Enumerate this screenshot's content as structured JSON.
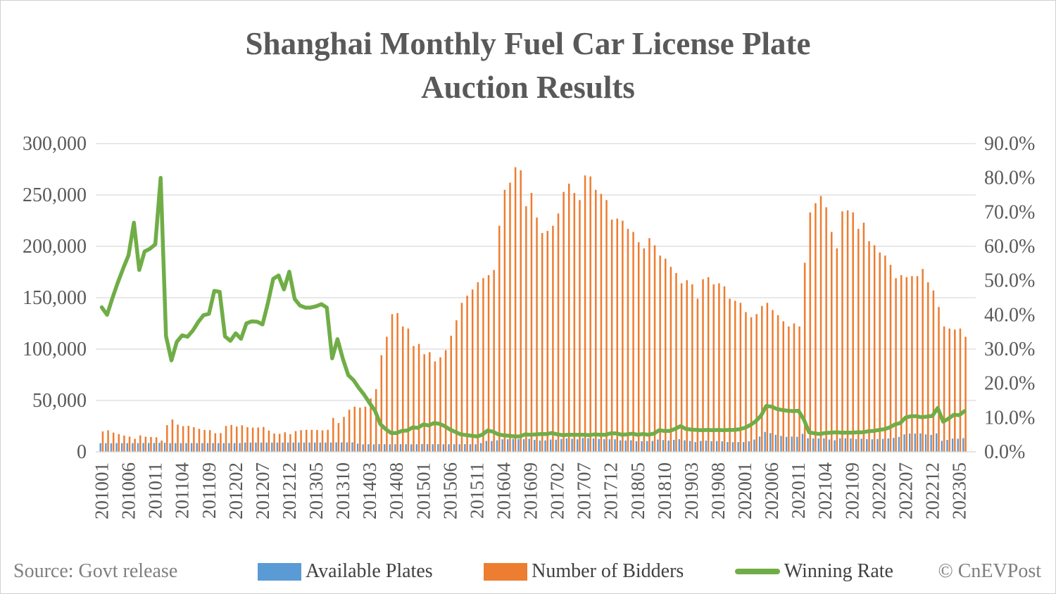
{
  "title": {
    "line1": "Shanghai Monthly Fuel Car License Plate",
    "line2": "Auction Results"
  },
  "footer": {
    "source": "Source: Govt release",
    "credit": "© CnEVPost"
  },
  "chart_data": {
    "type": "combo-bar-line",
    "x_label_rotation": -90,
    "x_tick_every": 5,
    "x_tick_labels": [
      "201001",
      "201006",
      "201011",
      "201104",
      "201109",
      "201202",
      "201207",
      "201212",
      "201305",
      "201310",
      "201403",
      "201408",
      "201501",
      "201506",
      "201511",
      "201604",
      "201609",
      "201702",
      "201707",
      "201712",
      "201805",
      "201810",
      "201903",
      "201908",
      "202001",
      "202006",
      "202011",
      "202104",
      "202109",
      "202202",
      "202207",
      "202212",
      "202305"
    ],
    "months": [
      "201001",
      "201002",
      "201003",
      "201004",
      "201005",
      "201006",
      "201007",
      "201008",
      "201009",
      "201010",
      "201011",
      "201012",
      "201101",
      "201102",
      "201103",
      "201104",
      "201105",
      "201106",
      "201107",
      "201108",
      "201109",
      "201110",
      "201111",
      "201112",
      "201201",
      "201202",
      "201203",
      "201204",
      "201205",
      "201206",
      "201207",
      "201208",
      "201209",
      "201210",
      "201211",
      "201212",
      "201301",
      "201302",
      "201303",
      "201304",
      "201305",
      "201306",
      "201307",
      "201308",
      "201309",
      "201310",
      "201311",
      "201312",
      "201401",
      "201402",
      "201403",
      "201404",
      "201405",
      "201406",
      "201407",
      "201408",
      "201409",
      "201410",
      "201411",
      "201412",
      "201501",
      "201502",
      "201503",
      "201504",
      "201505",
      "201506",
      "201507",
      "201508",
      "201509",
      "201510",
      "201511",
      "201512",
      "201601",
      "201602",
      "201603",
      "201604",
      "201605",
      "201606",
      "201607",
      "201608",
      "201609",
      "201610",
      "201611",
      "201612",
      "201701",
      "201702",
      "201703",
      "201704",
      "201705",
      "201706",
      "201707",
      "201708",
      "201709",
      "201710",
      "201711",
      "201712",
      "201801",
      "201802",
      "201803",
      "201804",
      "201805",
      "201806",
      "201807",
      "201808",
      "201809",
      "201810",
      "201811",
      "201812",
      "201901",
      "201902",
      "201903",
      "201904",
      "201905",
      "201906",
      "201907",
      "201908",
      "201909",
      "201910",
      "201911",
      "201912",
      "202001",
      "202002",
      "202003",
      "202004",
      "202005",
      "202006",
      "202007",
      "202008",
      "202009",
      "202010",
      "202011",
      "202012",
      "202101",
      "202102",
      "202103",
      "202104",
      "202105",
      "202106",
      "202107",
      "202108",
      "202109",
      "202110",
      "202111",
      "202112",
      "202201",
      "202202",
      "202203",
      "202204",
      "202205",
      "202206",
      "202207",
      "202208",
      "202209",
      "202210",
      "202211",
      "202212",
      "202301",
      "202302",
      "202303",
      "202304",
      "202305",
      "202306"
    ],
    "series": [
      {
        "name": "Available Plates",
        "type": "bar",
        "axis": "left",
        "color": "#5B9BD5",
        "values": [
          8400,
          8400,
          8400,
          8500,
          8500,
          8500,
          8500,
          8500,
          8600,
          8600,
          8600,
          8800,
          8800,
          8400,
          8500,
          8500,
          8500,
          8500,
          8500,
          8500,
          8500,
          8500,
          8500,
          8500,
          8500,
          8500,
          8500,
          9000,
          9000,
          9000,
          9000,
          9000,
          9000,
          9000,
          9000,
          9000,
          9000,
          9000,
          9000,
          9000,
          9000,
          9000,
          9000,
          9000,
          9200,
          9200,
          9200,
          9200,
          8000,
          7300,
          7400,
          7300,
          7600,
          7400,
          7400,
          7400,
          7500,
          7400,
          7300,
          7400,
          7600,
          7500,
          7400,
          7500,
          7400,
          7400,
          7400,
          7400,
          7500,
          7400,
          7400,
          8500,
          10600,
          10500,
          11200,
          12200,
          12200,
          12600,
          12400,
          12300,
          12700,
          11700,
          11000,
          11100,
          12000,
          11800,
          12500,
          13000,
          12700,
          12200,
          13500,
          13200,
          13000,
          12500,
          12300,
          12200,
          12200,
          11200,
          11000,
          11300,
          10300,
          10300,
          10500,
          10600,
          12000,
          11500,
          11000,
          11600,
          12300,
          11200,
          10600,
          9500,
          10600,
          10900,
          10300,
          10500,
          10200,
          9500,
          9400,
          9500,
          9500,
          10200,
          11970,
          14900,
          19400,
          18200,
          16600,
          15500,
          14600,
          14900,
          14600,
          17500,
          13200,
          13000,
          13000,
          13100,
          12000,
          11200,
          13200,
          13200,
          13000,
          12400,
          12800,
          12300,
          12200,
          12500,
          12600,
          13000,
          13600,
          14500,
          17000,
          17800,
          17800,
          18000,
          17000,
          16500,
          18000,
          10700,
          11600,
          12900,
          12800,
          13300
        ]
      },
      {
        "name": "Number of Bidders",
        "type": "bar",
        "axis": "left",
        "color": "#ED7D31",
        "values": [
          19900,
          21000,
          18700,
          17200,
          15900,
          14800,
          12700,
          16000,
          14700,
          14500,
          14200,
          11000,
          26000,
          31500,
          26500,
          25000,
          25300,
          24000,
          22400,
          21300,
          21100,
          18100,
          18200,
          25200,
          26200,
          24600,
          25800,
          24000,
          23600,
          23700,
          24200,
          20700,
          17800,
          17500,
          19000,
          17100,
          20200,
          21100,
          21400,
          21400,
          21200,
          20900,
          21400,
          33000,
          28000,
          34000,
          41000,
          44000,
          43000,
          44000,
          52000,
          61000,
          94000,
          112000,
          134000,
          135000,
          122000,
          120000,
          103000,
          105000,
          95000,
          97000,
          88000,
          92000,
          99000,
          113000,
          128000,
          145000,
          152000,
          158000,
          165000,
          169000,
          172000,
          177000,
          220000,
          255000,
          262000,
          277000,
          274000,
          239000,
          252000,
          228000,
          213000,
          215000,
          220000,
          232000,
          253000,
          261000,
          252000,
          245000,
          269000,
          268000,
          255000,
          251000,
          245000,
          226000,
          227000,
          225000,
          217000,
          214000,
          204000,
          198000,
          208000,
          201000,
          191000,
          188000,
          180000,
          174000,
          164000,
          167000,
          163000,
          149000,
          168000,
          170000,
          163000,
          164000,
          161000,
          149000,
          147000,
          145000,
          136000,
          131000,
          134000,
          142000,
          145000,
          138000,
          133000,
          127000,
          122000,
          125000,
          122000,
          184000,
          233000,
          242000,
          249000,
          238000,
          214000,
          198000,
          234000,
          235000,
          233000,
          217000,
          223000,
          205000,
          201000,
          194000,
          191000,
          182000,
          169000,
          172000,
          170000,
          171000,
          171000,
          178000,
          165000,
          157000,
          141000,
          122000,
          120000,
          119000,
          120000,
          112000
        ]
      },
      {
        "name": "Winning Rate",
        "type": "line",
        "axis": "right",
        "color": "#70AD47",
        "values": [
          42.2,
          40.0,
          44.9,
          49.4,
          53.5,
          57.4,
          66.9,
          53.1,
          58.5,
          59.3,
          60.6,
          80.0,
          33.8,
          26.7,
          32.1,
          34.0,
          33.6,
          35.4,
          37.9,
          39.9,
          40.3,
          47.0,
          46.7,
          33.7,
          32.4,
          34.6,
          33.0,
          37.5,
          38.1,
          38.0,
          37.2,
          43.4,
          50.5,
          51.5,
          47.4,
          52.6,
          44.6,
          42.7,
          42.1,
          42.1,
          42.5,
          43.1,
          42.1,
          27.3,
          32.9,
          27.1,
          22.4,
          20.9,
          18.6,
          16.6,
          14.2,
          12.0,
          8.1,
          6.6,
          5.5,
          5.5,
          6.1,
          6.2,
          7.1,
          7.0,
          8.0,
          7.7,
          8.4,
          8.2,
          7.5,
          6.5,
          5.8,
          5.1,
          4.9,
          4.7,
          4.5,
          5.0,
          6.2,
          5.9,
          5.1,
          4.8,
          4.7,
          4.5,
          4.5,
          5.1,
          5.0,
          5.1,
          5.2,
          5.2,
          5.5,
          5.1,
          4.9,
          5.0,
          5.0,
          5.0,
          5.0,
          4.9,
          5.1,
          5.0,
          5.0,
          5.4,
          5.4,
          5.0,
          5.1,
          5.3,
          5.0,
          5.2,
          5.0,
          5.3,
          6.3,
          6.1,
          6.1,
          6.7,
          7.5,
          6.7,
          6.5,
          6.4,
          6.3,
          6.4,
          6.3,
          6.4,
          6.3,
          6.4,
          6.4,
          6.6,
          7.0,
          7.8,
          8.9,
          10.5,
          13.4,
          13.2,
          12.5,
          12.2,
          12.0,
          11.9,
          12.0,
          9.5,
          5.7,
          5.4,
          5.2,
          5.5,
          5.6,
          5.7,
          5.6,
          5.6,
          5.6,
          5.7,
          5.7,
          6.0,
          6.1,
          6.4,
          6.6,
          7.1,
          8.0,
          8.4,
          10.0,
          10.4,
          10.4,
          10.1,
          10.3,
          10.5,
          12.8,
          8.8,
          9.7,
          10.8,
          10.7,
          11.9
        ]
      }
    ],
    "left_axis": {
      "min": 0,
      "max": 300000,
      "step": 50000,
      "tick_labels": [
        "0",
        "50,000",
        "100,000",
        "150,000",
        "200,000",
        "250,000",
        "300,000"
      ]
    },
    "right_axis": {
      "min": 0,
      "max": 90,
      "step": 10,
      "tick_labels": [
        "0.0%",
        "10.0%",
        "20.0%",
        "30.0%",
        "40.0%",
        "50.0%",
        "60.0%",
        "70.0%",
        "80.0%",
        "90.0%"
      ]
    },
    "grid": true,
    "legend_position": "bottom",
    "colors": {
      "grid": "#d9d9d9",
      "axis_text": "#595959",
      "title_text": "#595959",
      "muted_text": "#7f7f7f"
    }
  }
}
